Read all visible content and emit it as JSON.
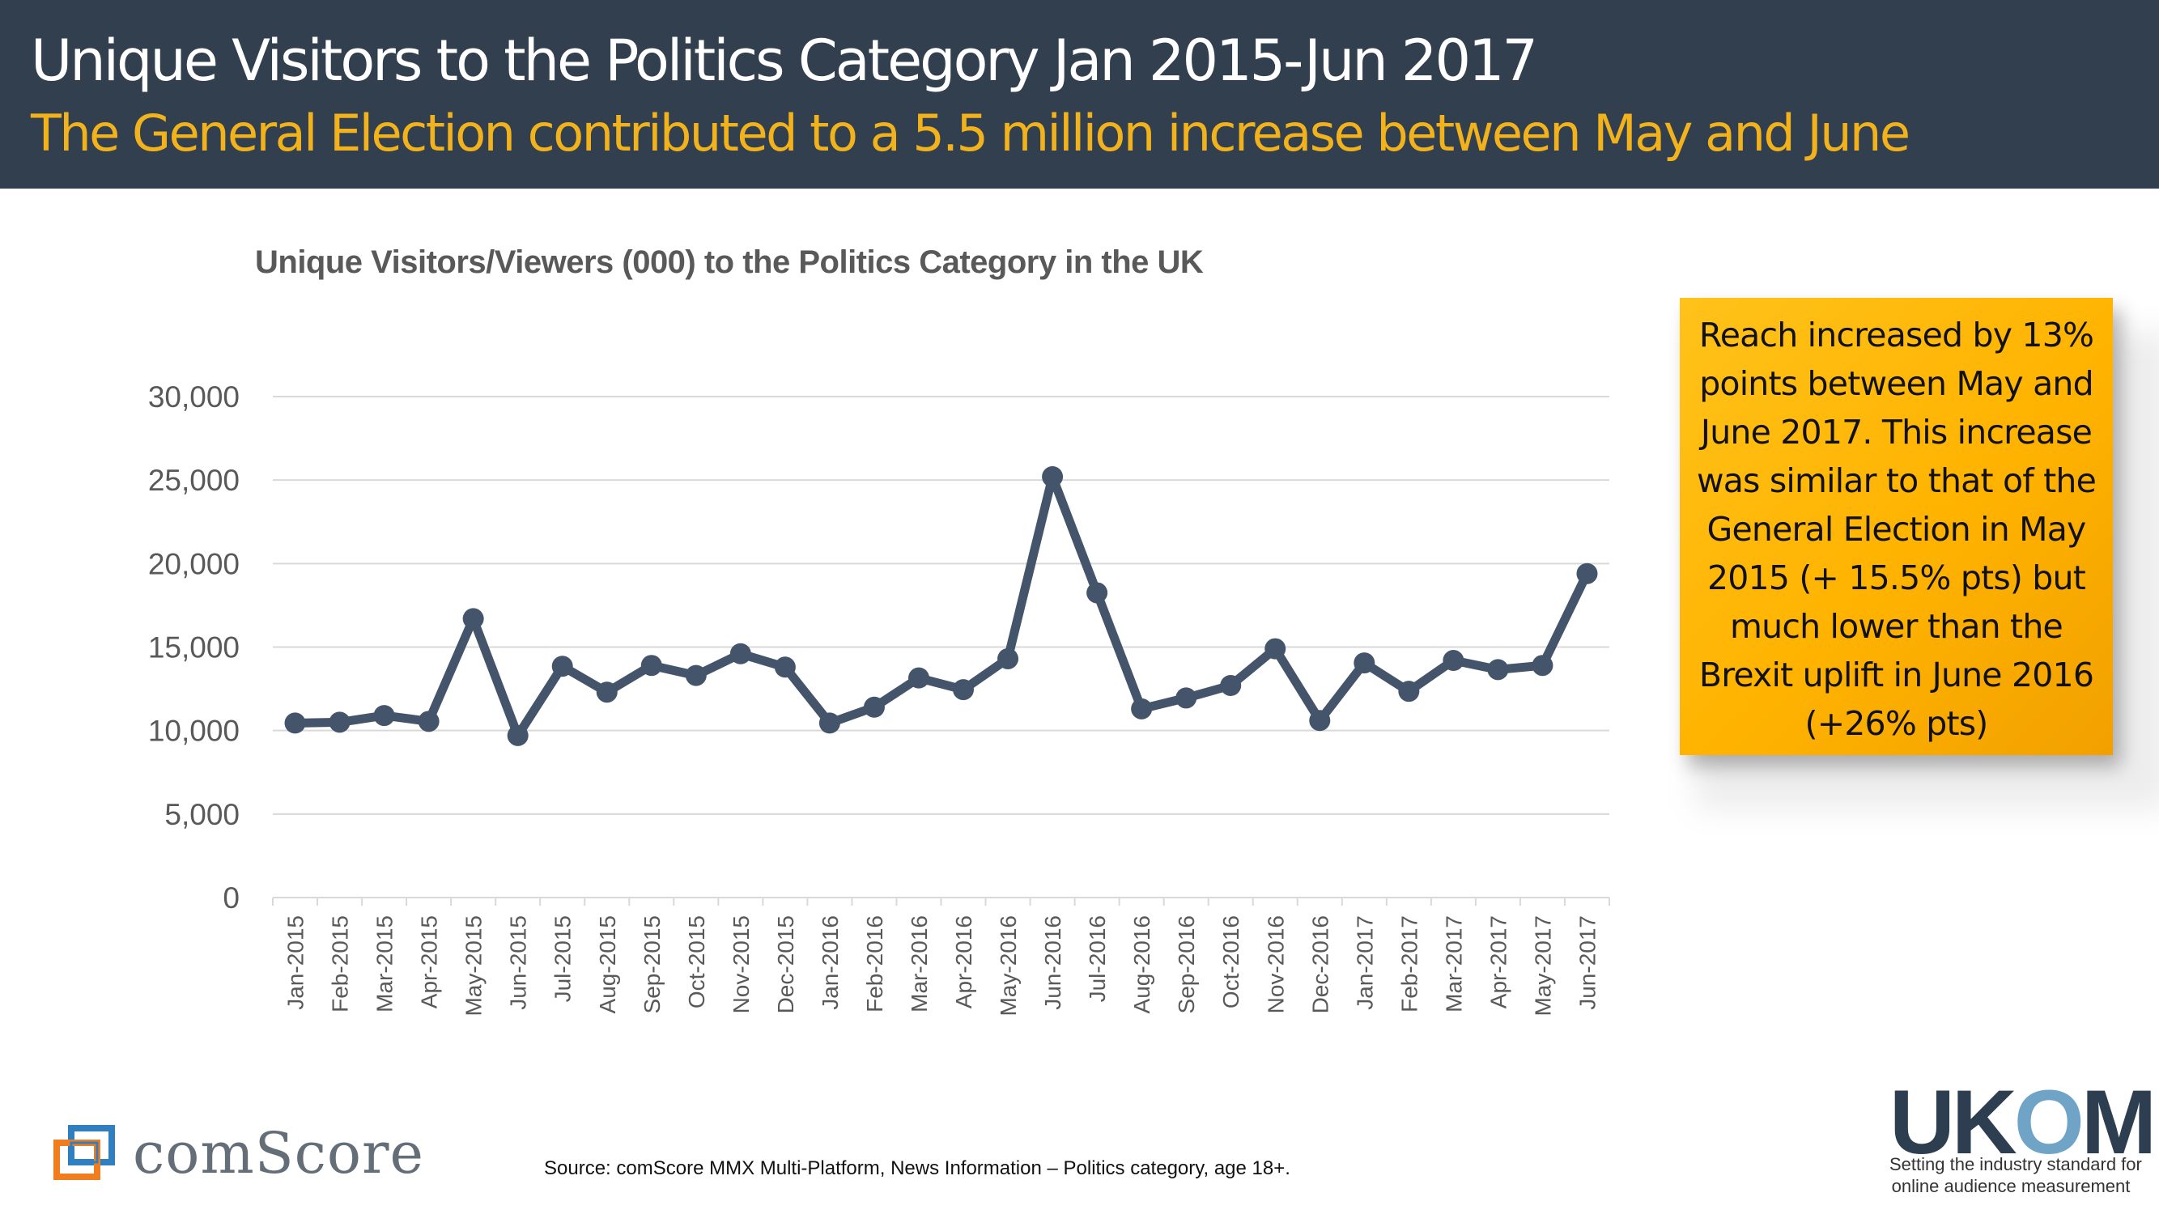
{
  "header": {
    "title": "Unique Visitors to the Politics Category Jan 2015-Jun 2017",
    "subtitle": "The General Election contributed to a 5.5 million increase between May and June"
  },
  "callout": {
    "text": "Reach increased by 13% points between May and June 2017. This increase was similar to that of the General Election in May 2015 (+ 15.5% pts) but much lower than the Brexit uplift in June 2016 (+26% pts)"
  },
  "source": "Source: comScore MMX Multi-Platform,  News Information – Politics category, age  18+.",
  "logos": {
    "comscore": "comScore",
    "ukom": "UKOM",
    "ukom_tagline_1": "Setting the industry standard for",
    "ukom_tagline_2": "online audience measurement"
  },
  "colors": {
    "header_bg": "#323f4f",
    "subtitle": "#f2b21b",
    "line": "#44546a",
    "callout_bg": "#ffb800"
  },
  "chart_data": {
    "type": "line",
    "title": "Unique Visitors/Viewers (000) to the Politics Category  in the UK",
    "xlabel": "",
    "ylabel": "",
    "ylim": [
      0,
      30000
    ],
    "yticks": [
      0,
      5000,
      10000,
      15000,
      20000,
      25000,
      30000
    ],
    "ytick_labels": [
      "0",
      "5,000",
      "10,000",
      "15,000",
      "20,000",
      "25,000",
      "30,000"
    ],
    "grid": true,
    "legend": "none",
    "categories": [
      "Jan-2015",
      "Feb-2015",
      "Mar-2015",
      "Apr-2015",
      "May-2015",
      "Jun-2015",
      "Jul-2015",
      "Aug-2015",
      "Sep-2015",
      "Oct-2015",
      "Nov-2015",
      "Dec-2015",
      "Jan-2016",
      "Feb-2016",
      "Mar-2016",
      "Apr-2016",
      "May-2016",
      "Jun-2016",
      "Jul-2016",
      "Aug-2016",
      "Sep-2016",
      "Oct-2016",
      "Nov-2016",
      "Dec-2016",
      "Jan-2017",
      "Feb-2017",
      "Mar-2017",
      "Apr-2017",
      "May-2017",
      "Jun-2017"
    ],
    "series": [
      {
        "values": [
          10450,
          10500,
          10900,
          10550,
          16700,
          9700,
          13850,
          12300,
          13900,
          13300,
          14600,
          13800,
          10450,
          11400,
          13150,
          12450,
          14300,
          25200,
          18250,
          11300,
          11950,
          12700,
          14900,
          10600,
          14050,
          12350,
          14200,
          13650,
          13900,
          19400
        ]
      }
    ]
  }
}
